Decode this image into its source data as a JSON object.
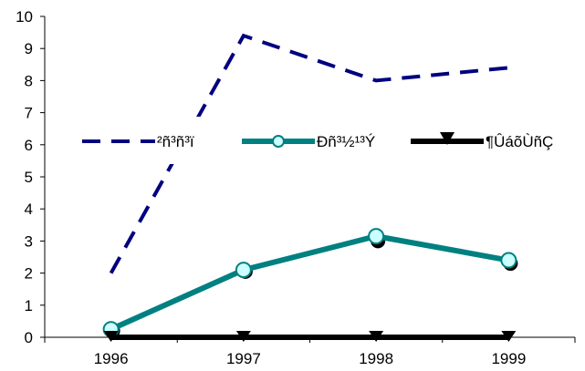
{
  "chart_data": {
    "type": "line",
    "x": [
      "1996",
      "1997",
      "1998",
      "1999"
    ],
    "ylim": [
      0,
      10
    ],
    "yticks": [
      0,
      1,
      2,
      3,
      4,
      5,
      6,
      7,
      8,
      9,
      10
    ],
    "grid": false,
    "legend_position": "top-center",
    "series": [
      {
        "name": "²ñ³ñ³ï",
        "values": [
          2,
          9.4,
          8,
          8.4
        ],
        "color": "#000080",
        "style": "dashed",
        "marker": "none"
      },
      {
        "name": "Ðñ³½¹³Ý",
        "values": [
          0.25,
          2.1,
          3.15,
          2.4
        ],
        "color": "#008080",
        "style": "solid",
        "marker": "circle",
        "marker_fill": "#ccffff"
      },
      {
        "name": "¶ÛáõÙñÇ",
        "values": [
          0,
          0,
          0,
          0
        ],
        "color": "#000000",
        "style": "solid",
        "marker": "triangle"
      }
    ],
    "shadow_points": {
      "name": "Ðñ³½¹³Ý",
      "values": [
        0.2,
        2.05,
        3,
        2.3
      ],
      "color": "#000000"
    }
  }
}
